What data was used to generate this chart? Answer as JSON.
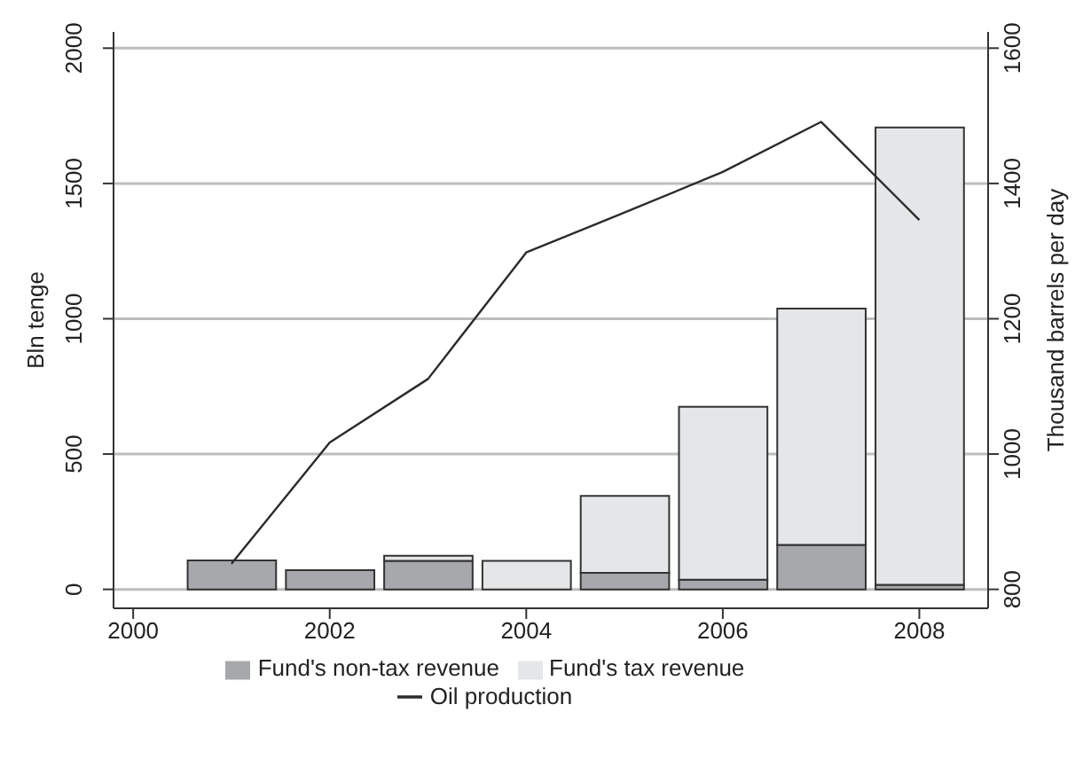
{
  "chart_data": {
    "type": "bar",
    "stacked": true,
    "x": [
      2001,
      2002,
      2003,
      2004,
      2005,
      2006,
      2007,
      2008
    ],
    "series": [
      {
        "name": "Fund's non-tax revenue",
        "color": "#a7a8ab",
        "values": [
          107,
          71,
          105,
          0,
          61,
          36,
          164,
          17
        ]
      },
      {
        "name": "Fund's tax revenue",
        "color": "#e5e6e8",
        "values": [
          0,
          0,
          19,
          105,
          284,
          639,
          874,
          1690
        ]
      },
      {
        "name": "Oil production",
        "type": "line",
        "axis": "y2",
        "color": "#2b2b2b",
        "values": [
          838,
          1017,
          1111,
          1298,
          1357,
          1417,
          1491,
          1346
        ]
      }
    ],
    "xlim": [
      1999.8,
      2008.7
    ],
    "xticks": [
      2000,
      2002,
      2004,
      2006,
      2008
    ],
    "ylim": [
      -70,
      2060
    ],
    "yticks": [
      0,
      500,
      1000,
      1500,
      2000
    ],
    "y2lim": [
      772,
      1624
    ],
    "y2ticks": [
      800,
      1000,
      1200,
      1400,
      1600
    ],
    "ylabel": "Bln tenge",
    "y2label": "Thousand barrels per day",
    "grid": "y",
    "legend": "bottom",
    "marker": "none",
    "line_style": "solid"
  }
}
